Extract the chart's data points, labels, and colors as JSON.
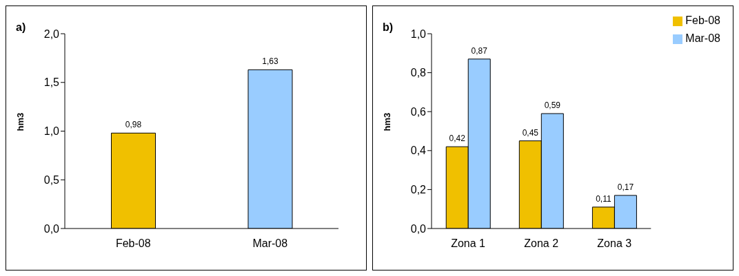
{
  "chart_data": [
    {
      "type": "bar",
      "title": "a)",
      "ylabel": "hm3",
      "categories": [
        "Feb-08",
        "Mar-08"
      ],
      "values": [
        0.98,
        1.63
      ],
      "colors": [
        "#f0c000",
        "#99ccff"
      ],
      "value_labels": [
        "0,98",
        "1,63"
      ],
      "ylim": [
        0,
        2
      ],
      "yticks": [
        {
          "value": 0,
          "label": "0,0"
        },
        {
          "value": 0.5,
          "label": "0,5"
        },
        {
          "value": 1,
          "label": "1,0"
        },
        {
          "value": 1.5,
          "label": "1,5"
        },
        {
          "value": 2,
          "label": "2,0"
        }
      ]
    },
    {
      "type": "bar",
      "title": "b)",
      "ylabel": "hm3",
      "categories": [
        "Zona 1",
        "Zona 2",
        "Zona 3"
      ],
      "series": [
        {
          "name": "Feb-08",
          "color": "#f0c000",
          "values": [
            0.42,
            0.45,
            0.11
          ],
          "value_labels": [
            "0,42",
            "0,45",
            "0,11"
          ]
        },
        {
          "name": "Mar-08",
          "color": "#99ccff",
          "values": [
            0.87,
            0.59,
            0.17
          ],
          "value_labels": [
            "0,87",
            "0,59",
            "0,17"
          ]
        }
      ],
      "ylim": [
        0,
        1
      ],
      "yticks": [
        {
          "value": 0,
          "label": "0,0"
        },
        {
          "value": 0.2,
          "label": "0,2"
        },
        {
          "value": 0.4,
          "label": "0,4"
        },
        {
          "value": 0.6,
          "label": "0,6"
        },
        {
          "value": 0.8,
          "label": "0,8"
        },
        {
          "value": 1,
          "label": "1,0"
        }
      ],
      "legend": "top right"
    }
  ]
}
